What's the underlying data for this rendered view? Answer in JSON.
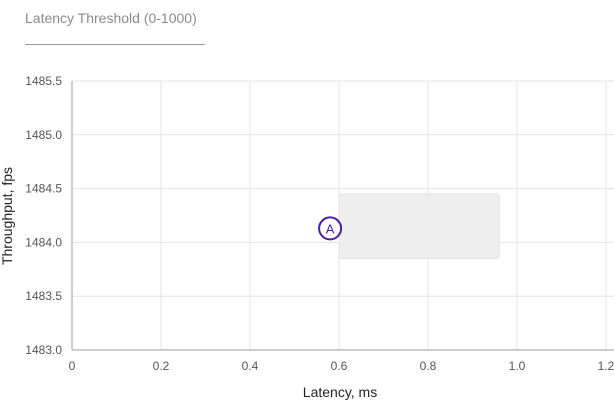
{
  "threshold_input": {
    "placeholder": "Latency Threshold (0-1000)",
    "value": ""
  },
  "chart_data": {
    "type": "scatter",
    "xlabel": "Latency, ms",
    "ylabel": "Throughput, fps",
    "xlim": [
      0,
      1.2
    ],
    "ylim": [
      1483.0,
      1485.5
    ],
    "x_ticks": [
      "0",
      "0.2",
      "0.4",
      "0.6",
      "0.8",
      "1.0",
      "1.2"
    ],
    "y_ticks": [
      "1483.0",
      "1483.5",
      "1484.0",
      "1484.5",
      "1485.0",
      "1485.5"
    ],
    "grid": true,
    "series": [
      {
        "points": [
          {
            "x": 0.58,
            "y": 1484.13,
            "label": "A"
          }
        ],
        "color": "#4a1aa8"
      }
    ],
    "tooltip": {
      "x_range": [
        0.6,
        0.96
      ],
      "y_range": [
        1483.85,
        1484.45
      ],
      "color": "#eeeeee"
    }
  }
}
